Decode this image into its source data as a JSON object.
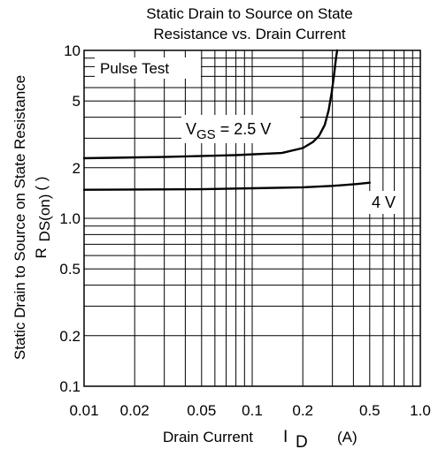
{
  "chart_data": {
    "type": "line",
    "title_lines": [
      "Static Drain to Source on State",
      "Resistance vs. Drain Current"
    ],
    "xlabel": {
      "main": "Drain Current",
      "symbol": "I",
      "subscript": "D",
      "unit": "(A)"
    },
    "ylabel": {
      "line1": "Static Drain to Source on State Resistance",
      "symbol": "R",
      "subscript": "DS(on)",
      "unit": "(  )"
    },
    "x_scale": "log",
    "y_scale": "log",
    "xlim": [
      0.01,
      1.0
    ],
    "ylim": [
      0.1,
      10
    ],
    "x_ticks": [
      {
        "value": 0.01,
        "label": "0.01"
      },
      {
        "value": 0.02,
        "label": "0.02"
      },
      {
        "value": 0.05,
        "label": "0.05"
      },
      {
        "value": 0.1,
        "label": "0.1"
      },
      {
        "value": 0.2,
        "label": "0.2"
      },
      {
        "value": 0.5,
        "label": "0.5"
      },
      {
        "value": 1.0,
        "label": "1.0"
      }
    ],
    "y_ticks": [
      {
        "value": 0.1,
        "label": "0.1"
      },
      {
        "value": 0.2,
        "label": "0.2"
      },
      {
        "value": 0.5,
        "label": "0.5"
      },
      {
        "value": 1.0,
        "label": "1.0"
      },
      {
        "value": 2,
        "label": "2"
      },
      {
        "value": 5,
        "label": "5"
      },
      {
        "value": 10,
        "label": "10"
      }
    ],
    "grid": true,
    "annotation": "Pulse Test",
    "series": [
      {
        "name": "VGS = 2.5 V",
        "label_symbol": "V",
        "label_subscript": "GS",
        "label_rest": " = 2.5 V",
        "points": [
          [
            0.01,
            2.28
          ],
          [
            0.03,
            2.32
          ],
          [
            0.08,
            2.38
          ],
          [
            0.15,
            2.45
          ],
          [
            0.2,
            2.62
          ],
          [
            0.23,
            2.85
          ],
          [
            0.25,
            3.1
          ],
          [
            0.27,
            3.6
          ],
          [
            0.285,
            4.4
          ],
          [
            0.297,
            5.6
          ],
          [
            0.307,
            7.2
          ],
          [
            0.315,
            9.0
          ],
          [
            0.32,
            10.0
          ]
        ]
      },
      {
        "name": "4 V",
        "label_rest": "4 V",
        "points": [
          [
            0.01,
            1.48
          ],
          [
            0.05,
            1.49
          ],
          [
            0.1,
            1.51
          ],
          [
            0.2,
            1.53
          ],
          [
            0.3,
            1.56
          ],
          [
            0.42,
            1.6
          ],
          [
            0.5,
            1.63
          ]
        ]
      }
    ]
  }
}
